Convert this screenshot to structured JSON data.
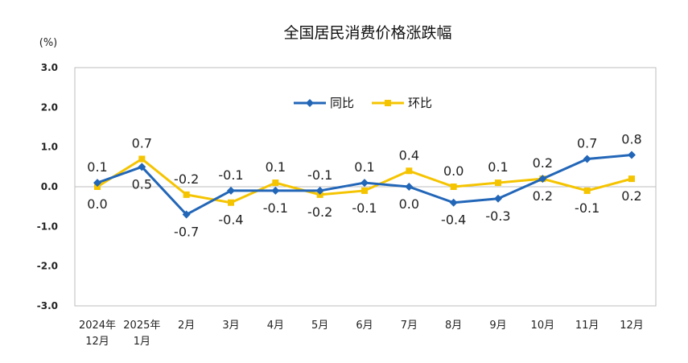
{
  "chart_data": {
    "type": "line",
    "title": "全国居民消费价格涨跌幅",
    "unit": "(%)",
    "ylim": [
      -3.0,
      3.0
    ],
    "yticks": [
      "3.0",
      "2.0",
      "1.0",
      "0.0",
      "-1.0",
      "-2.0",
      "-3.0"
    ],
    "categories": [
      [
        "2024年",
        "12月"
      ],
      [
        "2025年",
        "1月"
      ],
      [
        "2月"
      ],
      [
        "3月"
      ],
      [
        "4月"
      ],
      [
        "5月"
      ],
      [
        "6月"
      ],
      [
        "7月"
      ],
      [
        "8月"
      ],
      [
        "9月"
      ],
      [
        "10月"
      ],
      [
        "11月"
      ],
      [
        "12月"
      ]
    ],
    "legend_position": "top-right",
    "grid": false,
    "series": [
      {
        "name": "同比",
        "color": "#2266b8",
        "marker": "diamond",
        "values": [
          0.1,
          0.5,
          -0.7,
          -0.1,
          -0.1,
          -0.1,
          0.1,
          0.0,
          -0.4,
          -0.3,
          0.2,
          0.7,
          0.8
        ],
        "labels": [
          "0.1",
          "0.5",
          "-0.7",
          "-0.1",
          "-0.1",
          "-0.1",
          "0.1",
          "0.0",
          "-0.4",
          "-0.3",
          "0.2",
          "0.7",
          "0.8"
        ]
      },
      {
        "name": "环比",
        "color": "#f5c400",
        "marker": "square",
        "values": [
          0.0,
          0.7,
          -0.2,
          -0.4,
          0.1,
          -0.2,
          -0.1,
          0.4,
          0.0,
          0.1,
          0.2,
          -0.1,
          0.2
        ],
        "labels": [
          "0.0",
          "0.7",
          "-0.2",
          "-0.4",
          "0.1",
          "-0.2",
          "-0.1",
          "0.4",
          "0.0",
          "0.1",
          "0.2",
          "-0.1",
          "0.2"
        ]
      }
    ]
  }
}
